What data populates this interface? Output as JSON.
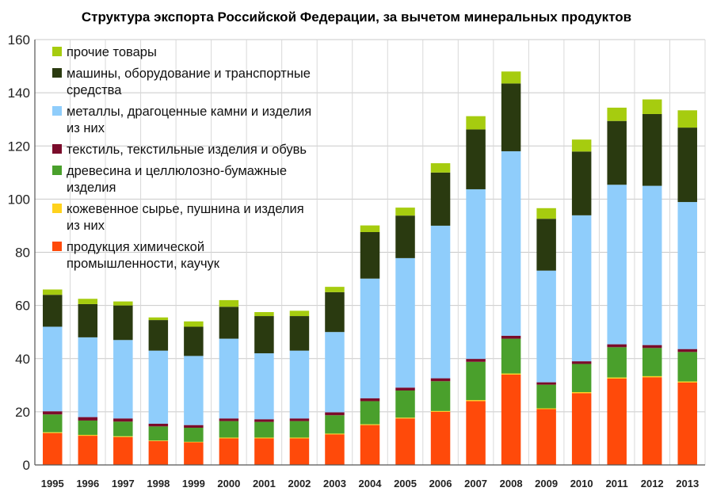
{
  "chart_data": {
    "type": "bar",
    "stacked": true,
    "title": "Структура экспорта Российской Федерации, за вычетом минеральных продуктов",
    "xlabel": "",
    "ylabel": "",
    "ylim": [
      0,
      160
    ],
    "yticks": [
      0,
      20,
      40,
      60,
      80,
      100,
      120,
      140,
      160
    ],
    "grid": true,
    "legend_position": "top-left",
    "categories": [
      "1995",
      "1996",
      "1997",
      "1998",
      "1999",
      "2000",
      "2001",
      "2002",
      "2003",
      "2004",
      "2005",
      "2006",
      "2007",
      "2008",
      "2009",
      "2010",
      "2011",
      "2012",
      "2013"
    ],
    "series": [
      {
        "name": "продукция химической промышленности, каучук",
        "legend_lines": [
          "продукция химической",
          "промышленности, каучук"
        ],
        "color": "#ff4a0a",
        "values": [
          12,
          11,
          10.5,
          9,
          8.5,
          10,
          10,
          10,
          11.5,
          15,
          17.5,
          20,
          24,
          34,
          21,
          27,
          32.5,
          33,
          31
        ]
      },
      {
        "name": "кожевенное сырье, пушнина и изделия из них",
        "legend_lines": [
          "кожевенное сырье, пушнина и изделия",
          "из них"
        ],
        "color": "#ffd21c",
        "values": [
          0.3,
          0.3,
          0.3,
          0.2,
          0.2,
          0.3,
          0.3,
          0.3,
          0.3,
          0.3,
          0.3,
          0.3,
          0.4,
          0.4,
          0.3,
          0.4,
          0.4,
          0.4,
          0.4
        ]
      },
      {
        "name": "древесина и целлюлозно-бумажные изделия",
        "legend_lines": [
          "древесина и целлюлозно-бумажные",
          "изделия"
        ],
        "color": "#4aa02c",
        "values": [
          6.7,
          5.4,
          5.5,
          5.3,
          5.3,
          6.2,
          5.9,
          6.2,
          6.9,
          8.7,
          10.2,
          11.2,
          14.4,
          13.1,
          8.9,
          10.6,
          11.4,
          10.6,
          11.1
        ]
      },
      {
        "name": "текстиль, текстильные изделия  и обувь",
        "legend_lines": [
          "текстиль, текстильные изделия  и обувь"
        ],
        "color": "#7b0c2b",
        "values": [
          1.2,
          1.3,
          1.2,
          1.0,
          1.0,
          1.0,
          1.0,
          1.0,
          1.1,
          1.1,
          1.1,
          1.1,
          1.1,
          1.1,
          0.9,
          1.0,
          1.1,
          1.1,
          1.1
        ]
      },
      {
        "name": "металлы, драгоценные камни и изделия из них",
        "legend_lines": [
          "металлы, драгоценные камни и изделия",
          "из них"
        ],
        "color": "#8fcdfb",
        "values": [
          31.8,
          30.0,
          29.5,
          27.5,
          26.0,
          30.0,
          24.8,
          25.5,
          30.2,
          45.0,
          48.7,
          57.4,
          63.8,
          69.4,
          42.0,
          54.9,
          60.0,
          59.9,
          55.3
        ]
      },
      {
        "name": "машины, оборудование и транспортные средства",
        "legend_lines": [
          "машины, оборудование и транспортные",
          "средства"
        ],
        "color": "#2a3a10",
        "values": [
          12,
          12.5,
          13,
          11.5,
          11,
          12,
          14,
          13,
          15,
          17.5,
          16,
          20,
          22.5,
          25.5,
          19.5,
          24,
          24,
          27,
          28
        ]
      },
      {
        "name": "прочие товары",
        "legend_lines": [
          "прочие товары"
        ],
        "color": "#a6cc0f",
        "values": [
          2,
          2,
          1.5,
          1,
          2,
          2.5,
          1.5,
          2,
          2,
          2.5,
          3,
          3.5,
          5,
          4.5,
          4,
          4.5,
          5,
          5.5,
          6.5
        ]
      }
    ]
  }
}
